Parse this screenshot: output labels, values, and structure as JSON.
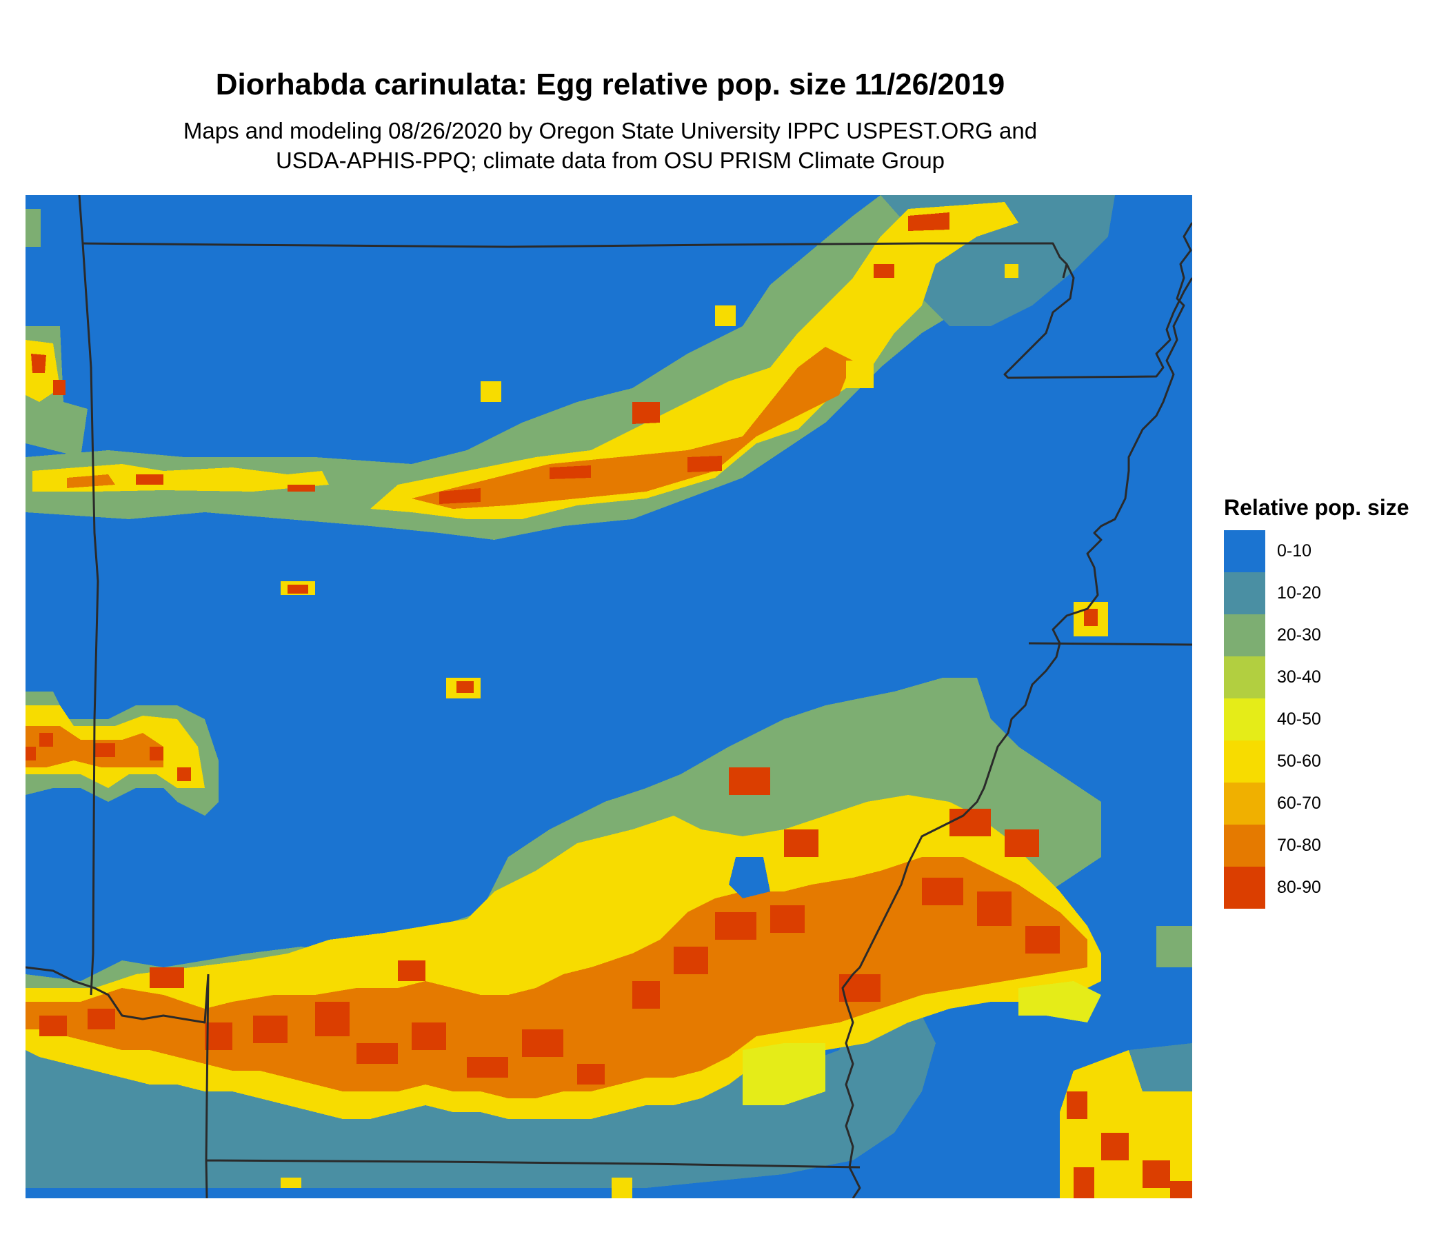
{
  "title": "Diorhabda carinulata: Egg relative pop. size 11/26/2019",
  "subtitle_line1": "Maps and modeling 08/26/2020 by Oregon State University IPPC USPEST.ORG and",
  "subtitle_line2": "USDA-APHIS-PPQ; climate data from OSU PRISM Climate Group",
  "legend": {
    "title": "Relative pop. size",
    "classes": [
      {
        "label": "0-10",
        "color": "#1b74d1"
      },
      {
        "label": "10-20",
        "color": "#4a8fa3"
      },
      {
        "label": "20-30",
        "color": "#7dae72"
      },
      {
        "label": "30-40",
        "color": "#b2cf40"
      },
      {
        "label": "40-50",
        "color": "#e5ec18"
      },
      {
        "label": "50-60",
        "color": "#f7dc00"
      },
      {
        "label": "60-70",
        "color": "#f0b000"
      },
      {
        "label": "70-80",
        "color": "#e57a00"
      },
      {
        "label": "80-90",
        "color": "#db3e00"
      }
    ]
  },
  "colors": {
    "background_class": "#1b74d1",
    "boundary": "#2a2a2a"
  }
}
